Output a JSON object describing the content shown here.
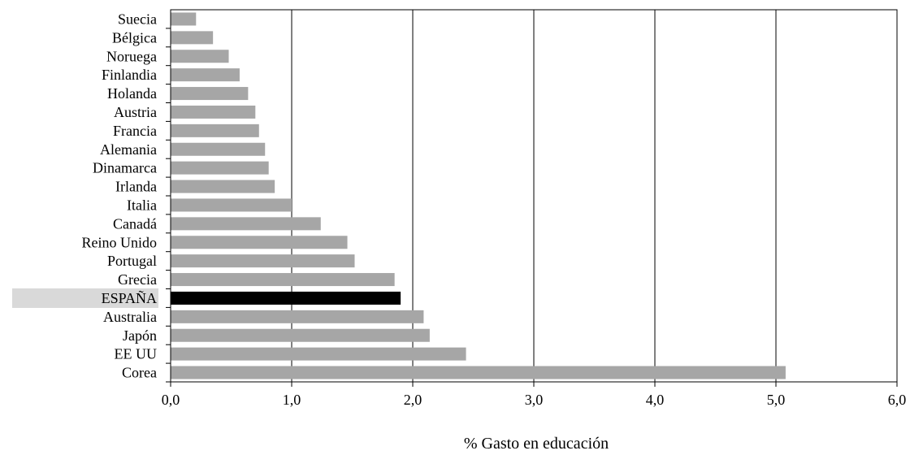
{
  "chart_data": {
    "type": "bar",
    "orientation": "horizontal",
    "title": "",
    "xlabel": "% Gasto en educación",
    "ylabel": "",
    "xlim": [
      0,
      6
    ],
    "x_ticks": [
      "0,0",
      "1,0",
      "2,0",
      "3,0",
      "4,0",
      "5,0",
      "6,0"
    ],
    "grid": "vertical",
    "categories": [
      "Suecia",
      "Bélgica",
      "Noruega",
      "Finlandia",
      "Holanda",
      "Austria",
      "Francia",
      "Alemania",
      "Dinamarca",
      "Irlanda",
      "Italia",
      "Canadá",
      "Reino Unido",
      "Portugal",
      "Grecia",
      "ESPAÑA",
      "Australia",
      "Japón",
      "EE UU",
      "Corea"
    ],
    "values": [
      0.21,
      0.35,
      0.48,
      0.57,
      0.64,
      0.7,
      0.73,
      0.78,
      0.81,
      0.86,
      1.0,
      1.24,
      1.46,
      1.52,
      1.85,
      1.9,
      2.09,
      2.14,
      2.44,
      5.08
    ],
    "highlight": "ESPAÑA",
    "colors": {
      "bar": "#a6a6a6",
      "highlight_bar": "#000000",
      "highlight_label_bg": "#d9d9d9",
      "axis": "#000000"
    }
  }
}
